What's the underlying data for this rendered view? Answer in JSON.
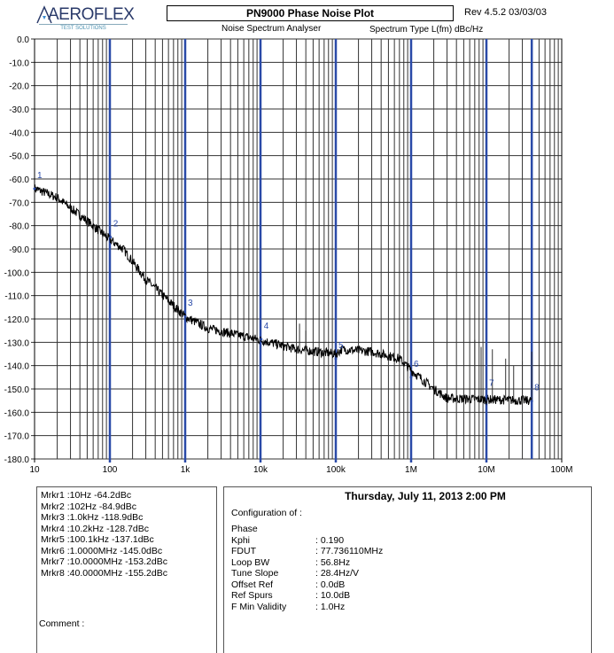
{
  "header": {
    "logo_text": "AEROFLEX",
    "logo_subtext": "TEST SOLUTIONS",
    "title": "PN9000 Phase Noise Plot",
    "revision": "Rev 4.5.2  03/03/03",
    "subtitle": "Noise Spectrum Analyser",
    "spectrum_type": "Spectrum Type  L(fm) dBc/Hz"
  },
  "chart_data": {
    "type": "line",
    "title": "PN9000 Phase Noise Plot",
    "xscale": "log",
    "xlim": [
      10,
      100000000
    ],
    "ylim": [
      -180,
      0
    ],
    "grid": true,
    "x_tick_values": [
      10,
      100,
      1000,
      10000,
      100000,
      1000000,
      10000000,
      100000000
    ],
    "x_tick_labels": [
      "10",
      "100",
      "1k",
      "10k",
      "100k",
      "1M",
      "10M",
      "100M"
    ],
    "y_tick_values": [
      0,
      -10,
      -20,
      -30,
      -40,
      -50,
      -60,
      -70,
      -80,
      -90,
      -100,
      -110,
      -120,
      -130,
      -140,
      -150,
      -160,
      -170,
      -180
    ],
    "y_tick_labels": [
      "0.0",
      "-10.0",
      "-20.0",
      "-30.0",
      "-40.0",
      "-50.0",
      "-60.0",
      "-70.0",
      "-80.0",
      "-90.0",
      "-100.0",
      "-110.0",
      "-120.0",
      "-130.0",
      "-140.0",
      "-150.0",
      "-160.0",
      "-170.0",
      "-180.0"
    ],
    "series": [
      {
        "color": "#000000",
        "x": [
          10,
          20,
          50,
          100,
          150,
          300,
          1000,
          2000,
          10000,
          30000,
          100000,
          120000,
          300000,
          700000,
          1000000,
          2000000,
          3000000,
          10000000,
          40000000
        ],
        "y": [
          -64,
          -68,
          -78,
          -86,
          -90,
          -103,
          -119,
          -124,
          -129,
          -133,
          -135,
          -133,
          -134,
          -137,
          -142,
          -150,
          -154,
          -154.5,
          -155
        ]
      }
    ],
    "spurs": [
      {
        "x": 33000,
        "y": -122
      },
      {
        "x": 40000,
        "y": -125
      },
      {
        "x": 7000000,
        "y": -129
      },
      {
        "x": 8500000,
        "y": -132
      },
      {
        "x": 12000000,
        "y": -133
      },
      {
        "x": 18000000,
        "y": -137
      },
      {
        "x": 23000000,
        "y": -140
      },
      {
        "x": 30000000,
        "y": -138
      },
      {
        "x": 40000000,
        "y": -134
      }
    ],
    "markers": [
      {
        "label": "1",
        "x": 10,
        "y": -64.2
      },
      {
        "label": "2",
        "x": 102,
        "y": -84.9
      },
      {
        "label": "3",
        "x": 1000,
        "y": -118.9
      },
      {
        "label": "4",
        "x": 10200,
        "y": -128.7
      },
      {
        "label": "5",
        "x": 100100,
        "y": -137.1
      },
      {
        "label": "6",
        "x": 1000000,
        "y": -145.0
      },
      {
        "label": "7",
        "x": 10000000,
        "y": -153.2
      },
      {
        "label": "8",
        "x": 40000000,
        "y": -155.2
      }
    ],
    "marker_line_color": "#2a4aa8"
  },
  "markers_panel": {
    "lines": [
      "Mrkr1 :10Hz  -64.2dBc",
      "Mrkr2 :102Hz  -84.9dBc",
      "Mrkr3 :1.0kHz  -118.9dBc",
      "Mrkr4 :10.2kHz  -128.7dBc",
      "Mrkr5 :100.1kHz  -137.1dBc",
      "Mrkr6 :1.0000MHz  -145.0dBc",
      "Mrkr7 :10.0000MHz  -153.2dBc",
      "Mrkr8 :40.0000MHz  -155.2dBc"
    ],
    "comment_label": "Comment :"
  },
  "config_panel": {
    "datetime": "Thursday, July 11, 2013    2:00 PM",
    "heading": "Configuration of :",
    "section": "Phase",
    "rows": [
      {
        "k": "Kphi",
        "v": ": 0.190"
      },
      {
        "k": "FDUT",
        "v": ": 77.736110MHz"
      },
      {
        "k": "Loop BW",
        "v": ": 56.8Hz"
      },
      {
        "k": "Tune Slope",
        "v": ": 28.4Hz/V"
      },
      {
        "k": "Offset Ref",
        "v": ": 0.0dB"
      },
      {
        "k": "Ref Spurs",
        "v": ": 10.0dB"
      },
      {
        "k": "F Min Validity",
        "v": ": 1.0Hz"
      }
    ]
  }
}
